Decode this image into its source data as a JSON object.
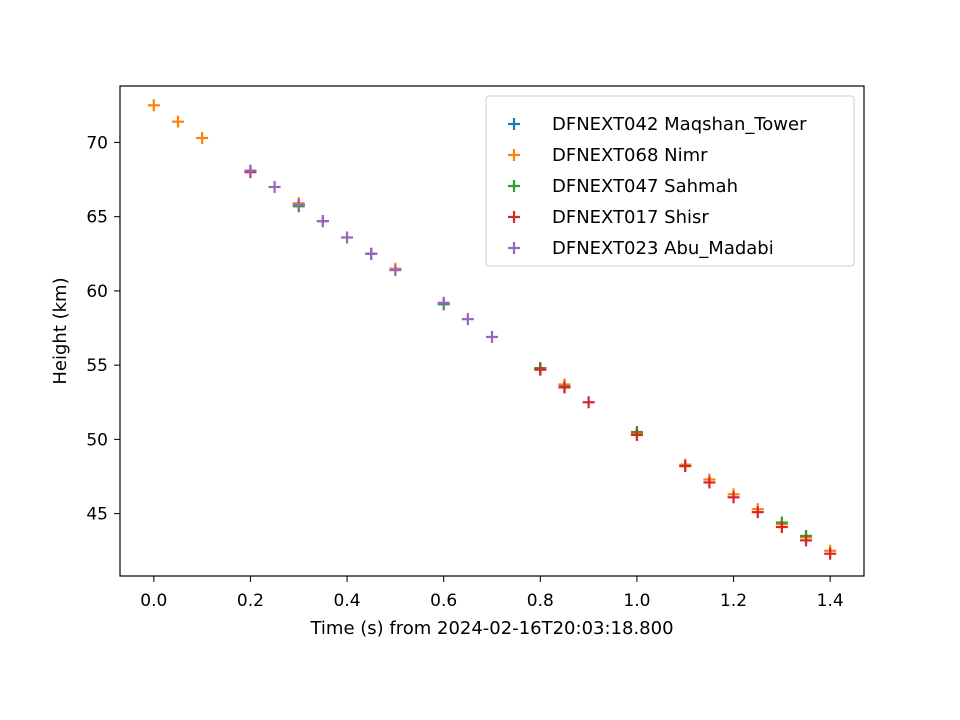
{
  "chart_data": {
    "type": "scatter",
    "title": "",
    "xlabel": "Time (s) from 2024-02-16T20:03:18.800",
    "ylabel": "Height (km)",
    "xlim": [
      -0.07,
      1.47
    ],
    "ylim": [
      40.8,
      73.8
    ],
    "xticks": [
      "0.0",
      "0.2",
      "0.4",
      "0.6",
      "0.8",
      "1.0",
      "1.2",
      "1.4"
    ],
    "yticks": [
      "45",
      "50",
      "55",
      "60",
      "65",
      "70"
    ],
    "grid": false,
    "legend_position": "top-right",
    "marker": "plus",
    "series": [
      {
        "name": "DFNEXT042 Maqshan_Tower",
        "color": "#1f77b4",
        "points": [
          [
            0.3,
            65.8
          ],
          [
            0.35,
            64.7
          ],
          [
            0.45,
            62.5
          ],
          [
            0.8,
            54.8
          ],
          [
            0.85,
            53.6
          ],
          [
            1.0,
            50.4
          ],
          [
            1.35,
            43.4
          ]
        ]
      },
      {
        "name": "DFNEXT068 Nimr",
        "color": "#ff7f0e",
        "points": [
          [
            0.0,
            72.5
          ],
          [
            0.05,
            71.4
          ],
          [
            0.1,
            70.3
          ],
          [
            0.2,
            68.1
          ],
          [
            0.3,
            65.9
          ],
          [
            0.5,
            61.5
          ],
          [
            0.8,
            54.7
          ],
          [
            0.85,
            53.7
          ],
          [
            1.0,
            50.4
          ],
          [
            1.1,
            48.3
          ],
          [
            1.15,
            47.3
          ],
          [
            1.2,
            46.3
          ],
          [
            1.25,
            45.3
          ],
          [
            1.3,
            44.3
          ],
          [
            1.35,
            43.4
          ],
          [
            1.4,
            42.5
          ]
        ]
      },
      {
        "name": "DFNEXT047 Sahmah",
        "color": "#2ca02c",
        "points": [
          [
            0.3,
            65.7
          ],
          [
            0.6,
            59.1
          ],
          [
            0.8,
            54.8
          ],
          [
            1.0,
            50.5
          ],
          [
            1.3,
            44.4
          ],
          [
            1.35,
            43.5
          ]
        ]
      },
      {
        "name": "DFNEXT017 Shisr",
        "color": "#d62728",
        "points": [
          [
            0.2,
            68.0
          ],
          [
            0.8,
            54.7
          ],
          [
            0.85,
            53.5
          ],
          [
            0.9,
            52.5
          ],
          [
            1.0,
            50.3
          ],
          [
            1.1,
            48.2
          ],
          [
            1.15,
            47.1
          ],
          [
            1.2,
            46.1
          ],
          [
            1.25,
            45.1
          ],
          [
            1.3,
            44.1
          ],
          [
            1.35,
            43.2
          ],
          [
            1.4,
            42.3
          ]
        ]
      },
      {
        "name": "DFNEXT023 Abu_Madabi",
        "color": "#9467bd",
        "points": [
          [
            0.2,
            68.1
          ],
          [
            0.25,
            67.0
          ],
          [
            0.3,
            65.8
          ],
          [
            0.35,
            64.7
          ],
          [
            0.4,
            63.6
          ],
          [
            0.45,
            62.5
          ],
          [
            0.5,
            61.4
          ],
          [
            0.6,
            59.2
          ],
          [
            0.65,
            58.1
          ],
          [
            0.7,
            56.9
          ]
        ]
      }
    ]
  }
}
